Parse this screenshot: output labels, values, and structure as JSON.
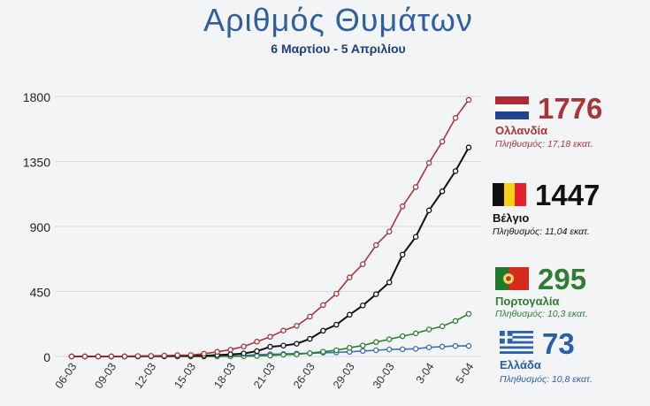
{
  "title": "Αριθμός Θυμάτων",
  "subtitle": "6 Μαρτίου - 5 Απριλίου",
  "chart_data": {
    "type": "line",
    "title": "Αριθμός Θυμάτων",
    "subtitle": "6 Μαρτίου - 5 Απριλίου",
    "x_tick_labels": [
      "06-03",
      "09-03",
      "12-03",
      "15-03",
      "18-03",
      "21-03",
      "26-03",
      "29-03",
      "30-03",
      "3-04",
      "5-04"
    ],
    "ylim": [
      0,
      1800
    ],
    "y_ticks": [
      0,
      450,
      900,
      1350,
      1800
    ],
    "grid": true,
    "series": [
      {
        "name": "Ολλανδία",
        "color": "#a8353a",
        "values": [
          0,
          0,
          0,
          1,
          1,
          3,
          4,
          6,
          9,
          10,
          19,
          32,
          47,
          69,
          103,
          136,
          179,
          212,
          276,
          356,
          434,
          547,
          639,
          771,
          864,
          1039,
          1173,
          1339,
          1487,
          1651,
          1776
        ]
      },
      {
        "name": "Βέλγιο",
        "color": "#111111",
        "values": [
          0,
          0,
          0,
          0,
          0,
          1,
          3,
          3,
          4,
          4,
          5,
          10,
          14,
          21,
          37,
          67,
          75,
          88,
          122,
          178,
          220,
          289,
          353,
          431,
          513,
          705,
          828,
          1011,
          1143,
          1283,
          1447
        ]
      },
      {
        "name": "Πορτογαλία",
        "color": "#2e7d32",
        "values": [
          0,
          0,
          0,
          0,
          0,
          0,
          0,
          0,
          0,
          0,
          0,
          0,
          1,
          2,
          3,
          6,
          12,
          14,
          23,
          33,
          43,
          60,
          76,
          100,
          119,
          140,
          160,
          187,
          209,
          246,
          295
        ]
      },
      {
        "name": "Ελλάδα",
        "color": "#3a6fb0",
        "values": [
          0,
          0,
          0,
          0,
          0,
          0,
          1,
          1,
          1,
          3,
          4,
          5,
          5,
          6,
          13,
          15,
          17,
          20,
          22,
          26,
          28,
          32,
          38,
          43,
          49,
          50,
          53,
          63,
          68,
          73,
          73
        ]
      }
    ]
  },
  "legend": [
    {
      "country": "Ολλανδία",
      "total": "1776",
      "population": "Πληθυσμός: 17,18 εκατ.",
      "color": "#a8353a",
      "flag": "nl-flag-icon"
    },
    {
      "country": "Βέλγιο",
      "total": "1447",
      "population": "Πληθυσμός: 11,04 εκατ.",
      "color": "#111111",
      "flag": "be-flag-icon"
    },
    {
      "country": "Πορτογαλία",
      "total": "295",
      "population": "Πληθυσμός: 10,3 εκατ.",
      "color": "#2e7d32",
      "flag": "pt-flag-icon"
    },
    {
      "country": "Ελλάδα",
      "total": "73",
      "population": "Πληθυσμός: 10,8 εκατ.",
      "color": "#2a5fa8",
      "flag": "gr-flag-icon"
    }
  ]
}
